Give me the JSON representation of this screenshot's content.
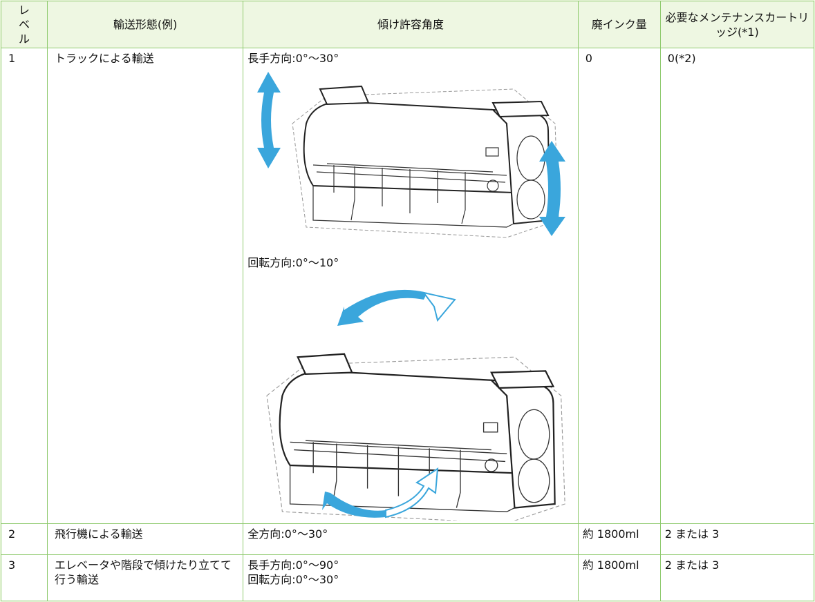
{
  "table": {
    "header": [
      "レベル",
      "輸送形態(例)",
      "傾け許容角度",
      "廃インク量",
      "必要なメンテナンスカートリッジ(*1)"
    ],
    "rows": [
      [
        "1",
        "トラックによる輸送",
        [
          "長手方向:0°〜30°",
          "回転方向:0°〜10°"
        ],
        "0",
        "0(*2)"
      ],
      [
        "2",
        "飛行機による輸送",
        [
          "全方向:0°〜30°"
        ],
        "約 1800ml",
        "2 または 3"
      ],
      [
        "3",
        "エレベータや階段で傾けたり立てて行う輸送",
        [
          "長手方向:0°〜90°",
          "回転方向:0°〜30°"
        ],
        "約 1800ml",
        "2 または 3"
      ]
    ]
  }
}
